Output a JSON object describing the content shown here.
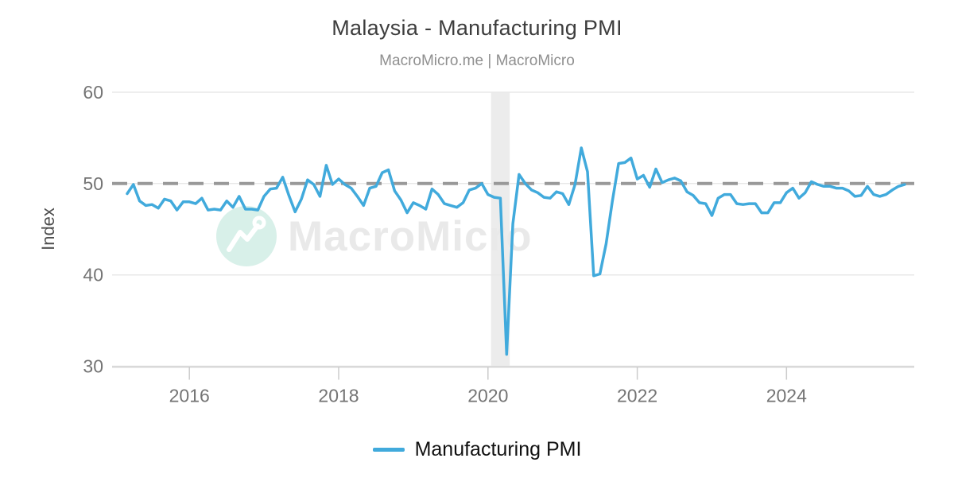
{
  "chart": {
    "title": "Malaysia - Manufacturing PMI",
    "subtitle": "MacroMicro.me | MacroMicro",
    "watermark": {
      "brand": "MacroMicro"
    },
    "legend": [
      {
        "label": "Manufacturing PMI"
      }
    ]
  },
  "chart_data": {
    "type": "line",
    "title": "Malaysia - Manufacturing PMI",
    "subtitle": "MacroMicro.me | MacroMicro",
    "ylabel": "Index",
    "ylim": [
      30,
      60
    ],
    "yticks": [
      60,
      50,
      40,
      30
    ],
    "xticks": [
      "2016",
      "2018",
      "2020",
      "2022",
      "2024"
    ],
    "frequency": "monthly",
    "x_start_month": "2015-03",
    "x_end_month": "2025-08",
    "grid": true,
    "legend_position": "bottom",
    "reference_line": {
      "value": 50,
      "style": "dashed",
      "color": "#999999"
    },
    "recession_band": {
      "start": "2020-02",
      "end": "2020-04"
    },
    "colors": {
      "band": "#ececec",
      "grid": "#e8e8e8",
      "axis": "#cccccc",
      "watermark_circle": "#d8f0e9",
      "watermark_text": "#e9e9e9"
    },
    "series": [
      {
        "name": "Manufacturing PMI",
        "color": "#41aadc",
        "values": [
          48.9,
          49.9,
          48.1,
          47.6,
          47.7,
          47.3,
          48.3,
          48.1,
          47.1,
          48.0,
          48.0,
          47.8,
          48.4,
          47.1,
          47.2,
          47.1,
          48.1,
          47.4,
          48.6,
          47.2,
          47.2,
          47.1,
          48.6,
          49.4,
          49.5,
          50.7,
          48.7,
          46.9,
          48.3,
          50.4,
          49.9,
          48.6,
          52.0,
          49.9,
          50.5,
          49.9,
          49.5,
          48.6,
          47.6,
          49.5,
          49.7,
          51.2,
          51.5,
          49.2,
          48.2,
          46.8,
          47.9,
          47.6,
          47.2,
          49.4,
          48.8,
          47.8,
          47.6,
          47.4,
          47.9,
          49.3,
          49.5,
          50.0,
          48.8,
          48.5,
          48.4,
          31.3,
          45.6,
          51.0,
          50.0,
          49.3,
          49.0,
          48.5,
          48.4,
          49.1,
          48.9,
          47.7,
          49.9,
          53.9,
          51.3,
          39.9,
          40.1,
          43.4,
          48.1,
          52.2,
          52.3,
          52.8,
          50.5,
          50.9,
          49.6,
          51.6,
          50.1,
          50.4,
          50.6,
          50.3,
          49.1,
          48.7,
          47.9,
          47.8,
          46.5,
          48.4,
          48.8,
          48.8,
          47.8,
          47.7,
          47.8,
          47.8,
          46.8,
          46.8,
          47.9,
          47.9,
          49.0,
          49.5,
          48.4,
          49.0,
          50.2,
          49.9,
          49.7,
          49.7,
          49.5,
          49.5,
          49.2,
          48.6,
          48.7,
          49.7,
          48.8,
          48.6,
          48.8,
          49.3,
          49.7,
          49.9
        ]
      }
    ]
  }
}
